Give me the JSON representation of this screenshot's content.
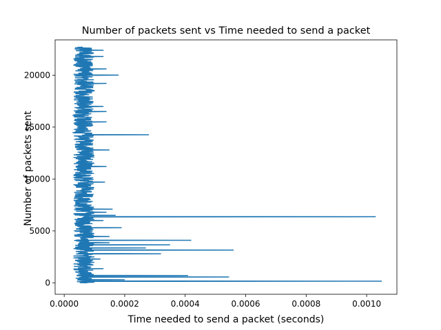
{
  "chart_data": {
    "type": "line",
    "title": "Number of packets sent vs Time needed to send a packet",
    "xlabel": "Time needed to send a packet (seconds)",
    "ylabel": "Number of packets sent",
    "xlim": [
      -3e-05,
      0.0011
    ],
    "ylim": [
      -1100,
      23400
    ],
    "x_ticks": [
      {
        "value": 0.0,
        "label": "0.0000"
      },
      {
        "value": 0.0002,
        "label": "0.0002"
      },
      {
        "value": 0.0004,
        "label": "0.0004"
      },
      {
        "value": 0.0006,
        "label": "0.0006"
      },
      {
        "value": 0.0008,
        "label": "0.0008"
      },
      {
        "value": 0.001,
        "label": "0.0010"
      }
    ],
    "y_ticks": [
      {
        "value": 0,
        "label": "0"
      },
      {
        "value": 5000,
        "label": "5000"
      },
      {
        "value": 10000,
        "label": "10000"
      },
      {
        "value": 15000,
        "label": "15000"
      },
      {
        "value": 20000,
        "label": "20000"
      }
    ],
    "grid": false,
    "legend": "none",
    "series_color": "#1f77b4",
    "baseline_band_x": [
      3e-05,
      0.0001
    ],
    "y_range": [
      0,
      22700
    ],
    "spikes": [
      {
        "y": 150,
        "x": 0.00105
      },
      {
        "y": 300,
        "x": 0.0002
      },
      {
        "y": 550,
        "x": 0.000545
      },
      {
        "y": 700,
        "x": 0.00041
      },
      {
        "y": 1350,
        "x": 0.00013
      },
      {
        "y": 2300,
        "x": 0.00012
      },
      {
        "y": 2800,
        "x": 0.00032
      },
      {
        "y": 3150,
        "x": 0.00056
      },
      {
        "y": 3350,
        "x": 0.00027
      },
      {
        "y": 3650,
        "x": 0.00035
      },
      {
        "y": 3850,
        "x": 0.00015
      },
      {
        "y": 4100,
        "x": 0.00042
      },
      {
        "y": 4450,
        "x": 0.00015
      },
      {
        "y": 5300,
        "x": 0.00019
      },
      {
        "y": 6000,
        "x": 0.00013
      },
      {
        "y": 6350,
        "x": 0.00103
      },
      {
        "y": 6500,
        "x": 0.00017
      },
      {
        "y": 6800,
        "x": 0.00014
      },
      {
        "y": 7100,
        "x": 0.00016
      },
      {
        "y": 9700,
        "x": 0.000135
      },
      {
        "y": 11200,
        "x": 0.00014
      },
      {
        "y": 12800,
        "x": 0.00015
      },
      {
        "y": 14250,
        "x": 0.00028
      },
      {
        "y": 15500,
        "x": 0.00014
      },
      {
        "y": 16500,
        "x": 0.00014
      },
      {
        "y": 17000,
        "x": 0.00013
      },
      {
        "y": 19200,
        "x": 0.00014
      },
      {
        "y": 20000,
        "x": 0.00018
      },
      {
        "y": 20600,
        "x": 0.00014
      },
      {
        "y": 21800,
        "x": 0.00013
      },
      {
        "y": 22400,
        "x": 0.00013
      }
    ]
  }
}
